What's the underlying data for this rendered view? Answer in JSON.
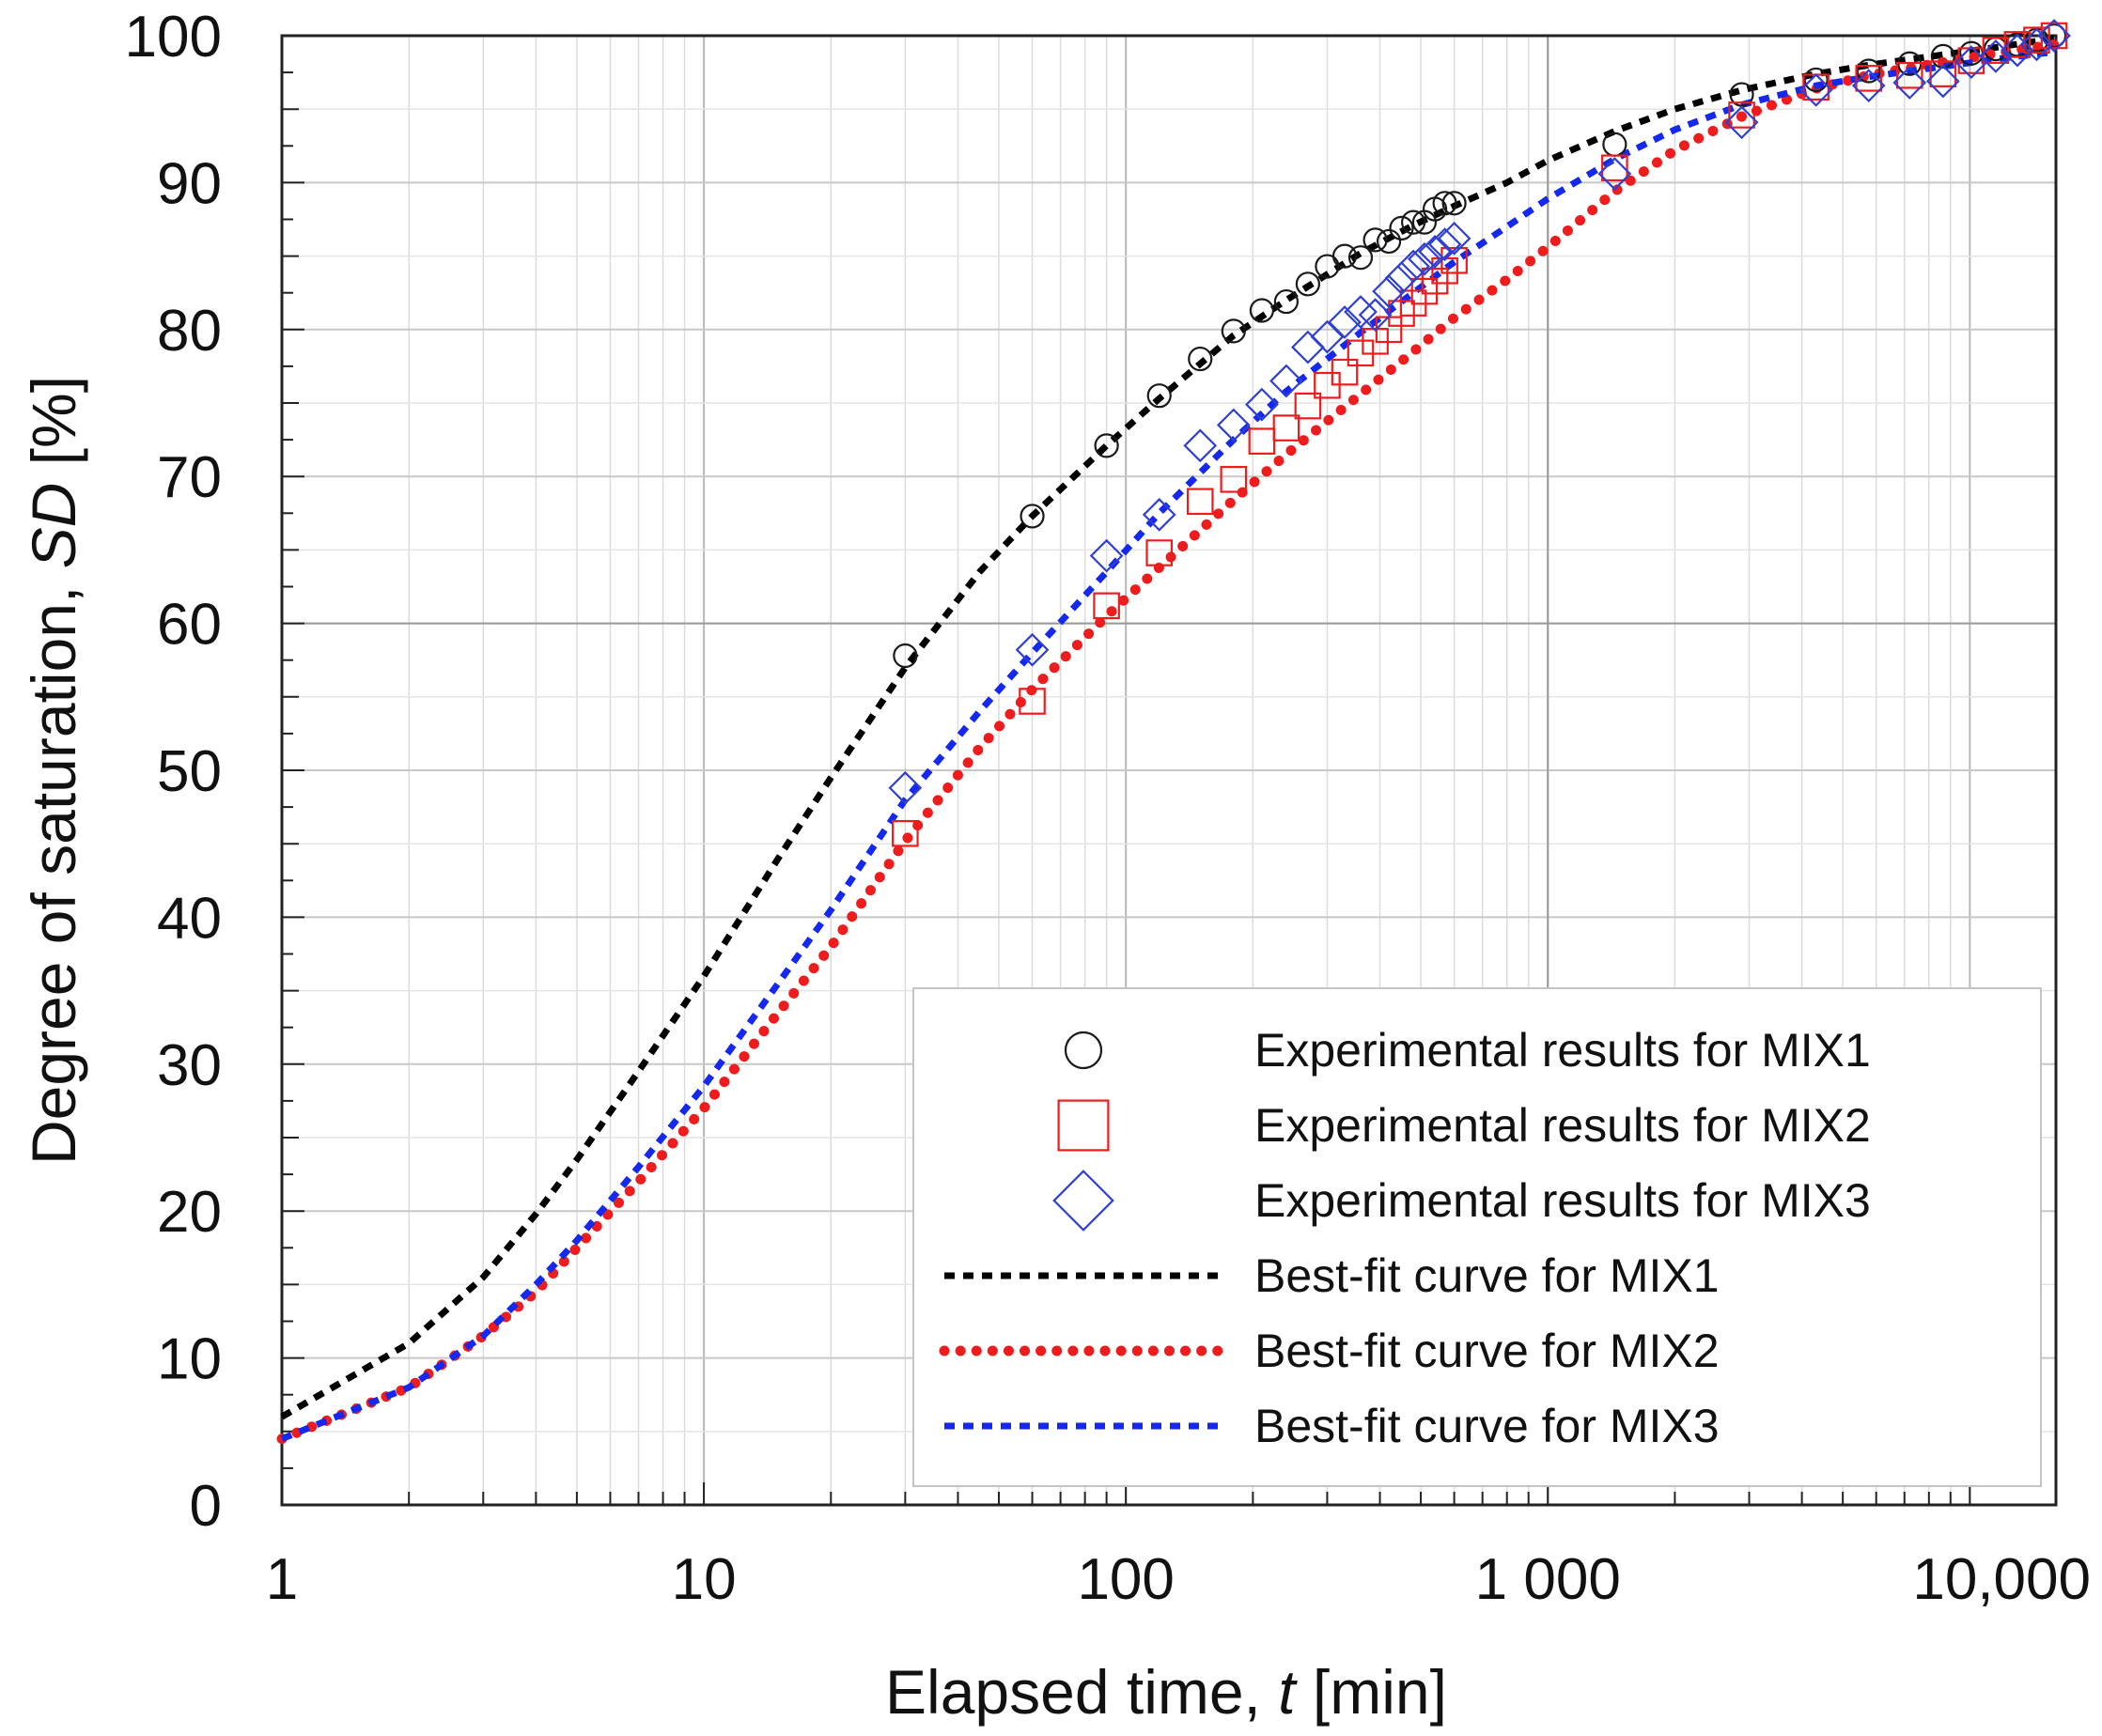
{
  "chart_data": {
    "type": "scatter",
    "x_scale": "log",
    "xlim": [
      1,
      16000
    ],
    "ylim": [
      0,
      100
    ],
    "grid": true,
    "legend_position": "bottom-right",
    "xlabel": {
      "prefix": "Elapsed time, ",
      "symbol": "t",
      "suffix": " [min]"
    },
    "ylabel": {
      "prefix": "Degree of saturation, ",
      "symbol": "SD",
      "suffix": " [%]"
    },
    "x_ticks": [
      {
        "value": 1,
        "label": "1"
      },
      {
        "value": 10,
        "label": "10"
      },
      {
        "value": 100,
        "label": "100"
      },
      {
        "value": 1000,
        "label": "1 000"
      },
      {
        "value": 10000,
        "label": "10,000"
      }
    ],
    "y_ticks": [
      {
        "value": 0,
        "label": "0"
      },
      {
        "value": 10,
        "label": "10"
      },
      {
        "value": 20,
        "label": "20"
      },
      {
        "value": 30,
        "label": "30"
      },
      {
        "value": 40,
        "label": "40"
      },
      {
        "value": 50,
        "label": "50"
      },
      {
        "value": 60,
        "label": "60"
      },
      {
        "value": 70,
        "label": "70"
      },
      {
        "value": 80,
        "label": "80"
      },
      {
        "value": 90,
        "label": "90"
      },
      {
        "value": 100,
        "label": "100"
      }
    ],
    "experimental": [
      {
        "name": "Experimental results for MIX1",
        "marker": "circle",
        "color": "#1a1a1a",
        "x": [
          30,
          60,
          90,
          120,
          150,
          180,
          210,
          240,
          270,
          300,
          330,
          360,
          390,
          420,
          450,
          480,
          510,
          540,
          570,
          600,
          1440,
          2880,
          4320,
          5760,
          7200,
          8640,
          10080,
          11520,
          12960,
          14400,
          15840
        ],
        "y": [
          57.8,
          67.3,
          72.1,
          75.5,
          78.0,
          79.9,
          81.3,
          81.9,
          83.1,
          84.3,
          85.0,
          84.9,
          86.1,
          86.0,
          86.9,
          87.3,
          87.3,
          88.2,
          88.6,
          88.6,
          92.6,
          96.0,
          97.0,
          97.6,
          98.1,
          98.6,
          98.8,
          99.1,
          99.4,
          99.7,
          100.0
        ]
      },
      {
        "name": "Experimental results for MIX2",
        "marker": "square",
        "color": "#ee1c1c",
        "x": [
          30,
          60,
          90,
          120,
          150,
          180,
          210,
          240,
          270,
          300,
          330,
          360,
          390,
          420,
          450,
          480,
          510,
          540,
          570,
          600,
          1440,
          2880,
          4320,
          5760,
          7200,
          8640,
          10080,
          11520,
          12960,
          14400,
          15840
        ],
        "y": [
          45.7,
          54.7,
          61.2,
          64.8,
          68.3,
          69.8,
          72.4,
          73.3,
          74.8,
          76.2,
          77.1,
          78.4,
          79.2,
          80.0,
          81.1,
          81.8,
          82.6,
          83.3,
          84.0,
          84.7,
          91.0,
          94.6,
          96.5,
          97.1,
          97.3,
          97.4,
          98.3,
          99.0,
          99.4,
          99.7,
          100.0
        ]
      },
      {
        "name": "Experimental results for MIX3",
        "marker": "diamond",
        "color": "#2f3fd1",
        "x": [
          30,
          60,
          90,
          120,
          150,
          180,
          210,
          240,
          270,
          300,
          330,
          360,
          390,
          420,
          450,
          480,
          510,
          540,
          570,
          600,
          1440,
          2880,
          4320,
          5760,
          7200,
          8640,
          10080,
          11520,
          12960,
          14400,
          15840
        ],
        "y": [
          48.8,
          58.2,
          64.6,
          67.4,
          72.1,
          73.5,
          74.9,
          76.5,
          78.8,
          79.5,
          80.5,
          81.2,
          81.0,
          82.6,
          83.5,
          84.3,
          84.8,
          85.3,
          85.8,
          86.2,
          90.6,
          94.1,
          96.3,
          96.6,
          96.8,
          96.9,
          98.2,
          98.6,
          99.0,
          99.4,
          100.0
        ]
      }
    ],
    "best_fit": [
      {
        "name": "Best-fit curve for MIX1",
        "color": "#000000",
        "x": [
          1,
          2,
          3,
          4,
          5,
          7,
          10,
          15,
          20,
          30,
          45,
          60,
          90,
          120,
          180,
          240,
          360,
          480,
          600,
          800,
          1000,
          1440,
          2000,
          2880,
          4320,
          5760,
          8640,
          11520,
          15840
        ],
        "y": [
          6.0,
          11.0,
          15.5,
          19.8,
          23.5,
          29.5,
          36.0,
          44.0,
          49.5,
          57.0,
          63.5,
          67.3,
          72.1,
          75.3,
          79.6,
          82.0,
          85.2,
          87.1,
          88.4,
          90.0,
          91.5,
          93.5,
          95.0,
          96.3,
          97.4,
          98.0,
          98.7,
          99.2,
          99.8
        ]
      },
      {
        "name": "Best-fit curve for MIX2",
        "color": "#ee1c1c",
        "x": [
          1,
          2,
          3,
          4,
          5,
          7,
          10,
          15,
          20,
          30,
          45,
          60,
          90,
          120,
          180,
          240,
          360,
          480,
          600,
          800,
          1000,
          1440,
          2000,
          2880,
          4320,
          5760,
          8640,
          11520,
          15840
        ],
        "y": [
          4.5,
          8.0,
          11.5,
          14.5,
          17.5,
          22.0,
          27.0,
          33.5,
          38.0,
          45.2,
          51.5,
          55.5,
          60.5,
          63.8,
          68.4,
          71.5,
          75.6,
          78.5,
          80.8,
          83.4,
          85.6,
          89.4,
          92.2,
          94.5,
          96.4,
          97.3,
          98.2,
          98.8,
          99.4
        ]
      },
      {
        "name": "Best-fit curve for MIX3",
        "color": "#1428ee",
        "x": [
          1,
          2,
          3,
          4,
          5,
          7,
          10,
          15,
          20,
          30,
          45,
          60,
          90,
          120,
          180,
          240,
          360,
          480,
          600,
          800,
          1000,
          1440,
          2000,
          2880,
          4320,
          5760,
          8640,
          11520,
          15840
        ],
        "y": [
          4.5,
          8.0,
          11.5,
          15.0,
          18.0,
          23.0,
          28.5,
          35.5,
          40.5,
          48.0,
          54.0,
          58.0,
          63.5,
          67.5,
          72.5,
          75.8,
          79.8,
          82.5,
          84.6,
          87.0,
          88.9,
          91.6,
          93.6,
          95.3,
          96.6,
          97.2,
          97.9,
          98.4,
          98.9
        ]
      }
    ]
  }
}
